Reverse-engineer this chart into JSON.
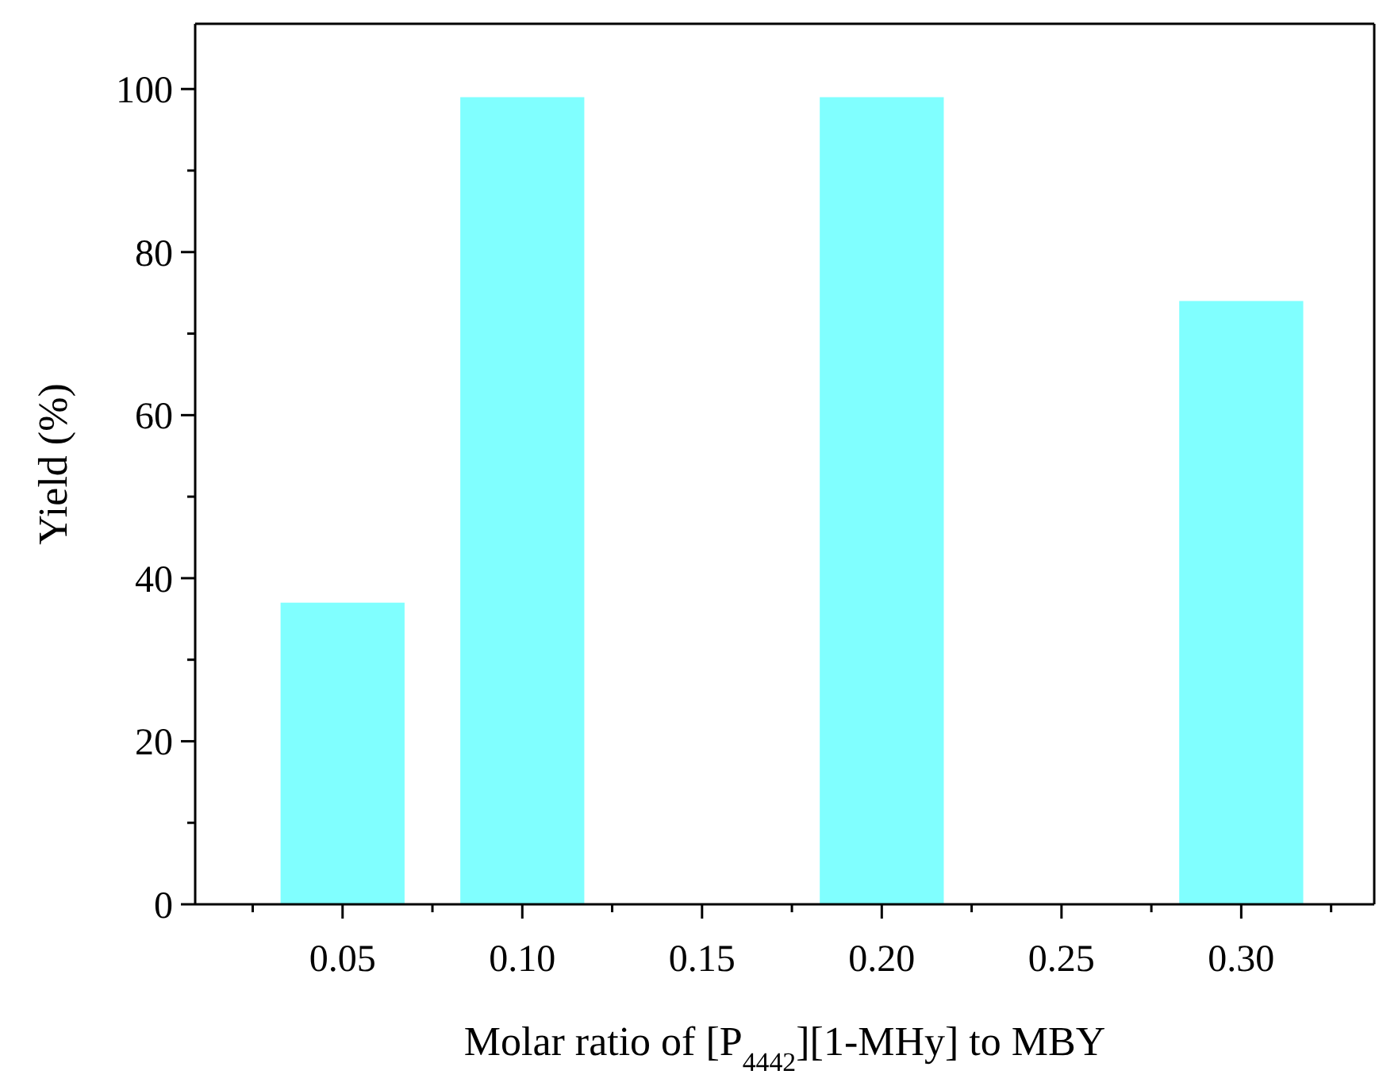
{
  "chart_data": {
    "type": "bar",
    "xlabel": "Molar ratio of [P$_{4442}$][1-MHy] to MBY",
    "ylabel": "Yield (%)",
    "categories": [
      "0.05",
      "0.10",
      "0.15",
      "0.20",
      "0.25",
      "0.30"
    ],
    "values": [
      37,
      99,
      null,
      99,
      null,
      74
    ],
    "color": "#80ffff",
    "ylim": [
      0,
      108
    ],
    "yticks": [
      0,
      {
        "value": 10,
        "label": null
      },
      20,
      {
        "value": 30,
        "label": null
      },
      40,
      {
        "value": 50,
        "label": null
      },
      60,
      {
        "value": 70,
        "label": null
      },
      80,
      {
        "value": 90,
        "label": null
      },
      100
    ],
    "grid": false
  }
}
